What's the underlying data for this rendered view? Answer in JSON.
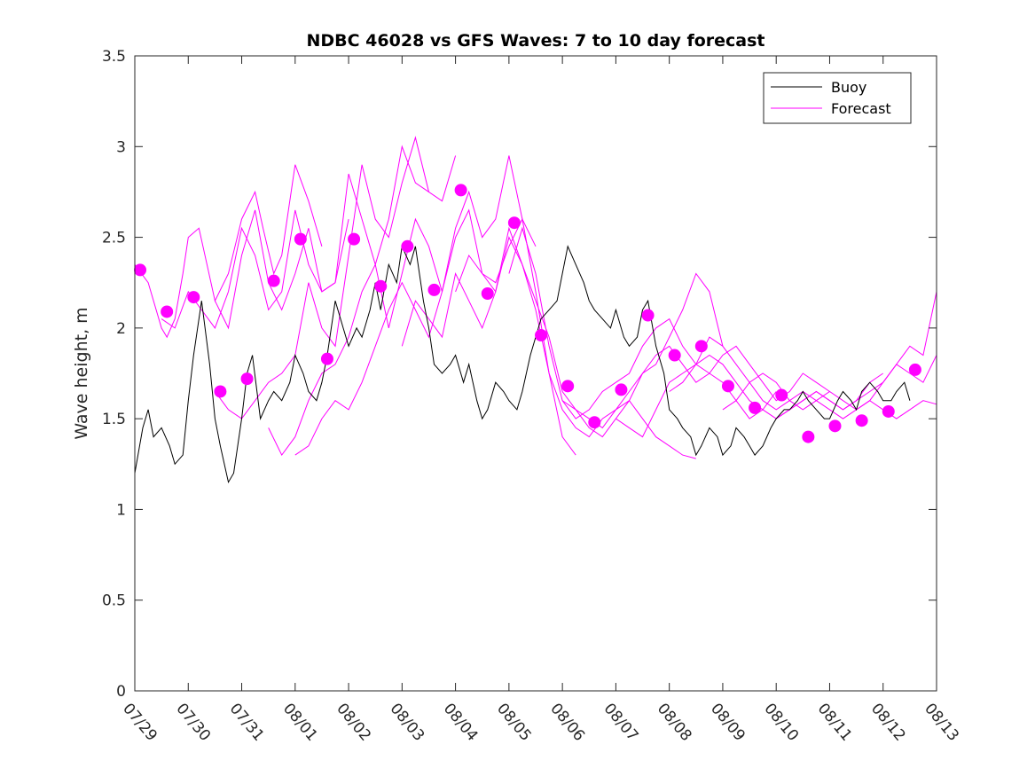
{
  "chart_data": {
    "type": "line",
    "title": "NDBC 46028 vs GFS Waves: 7 to 10 day forecast",
    "xlabel": "",
    "ylabel": "Wave height, m",
    "xlim": [
      "07/29",
      "08/13"
    ],
    "ylim": [
      0,
      3.5
    ],
    "x_tick_labels": [
      "07/29",
      "07/30",
      "07/31",
      "08/01",
      "08/02",
      "08/03",
      "08/04",
      "08/05",
      "08/06",
      "08/07",
      "08/08",
      "08/09",
      "08/10",
      "08/11",
      "08/12",
      "08/13"
    ],
    "y_ticks": [
      0,
      0.5,
      1,
      1.5,
      2,
      2.5,
      3,
      3.5
    ],
    "y_tick_labels": [
      "0",
      "0.5",
      "1",
      "1.5",
      "2",
      "2.5",
      "3",
      "3.5"
    ],
    "grid": false,
    "legend_position": "top-right",
    "series": [
      {
        "name": "Buoy",
        "color": "#000000",
        "x": [
          0.0,
          0.15,
          0.25,
          0.35,
          0.5,
          0.65,
          0.75,
          0.9,
          1.0,
          1.1,
          1.25,
          1.4,
          1.5,
          1.6,
          1.75,
          1.85,
          2.0,
          2.1,
          2.2,
          2.35,
          2.5,
          2.6,
          2.75,
          2.9,
          3.0,
          3.15,
          3.25,
          3.4,
          3.5,
          3.6,
          3.75,
          3.9,
          4.0,
          4.15,
          4.25,
          4.4,
          4.5,
          4.6,
          4.75,
          4.9,
          5.0,
          5.15,
          5.25,
          5.4,
          5.5,
          5.6,
          5.75,
          5.9,
          6.0,
          6.15,
          6.25,
          6.4,
          6.5,
          6.6,
          6.75,
          6.9,
          7.0,
          7.15,
          7.25,
          7.4,
          7.5,
          7.6,
          7.75,
          7.9,
          8.0,
          8.1,
          8.25,
          8.4,
          8.5,
          8.6,
          8.75,
          8.9,
          9.0,
          9.15,
          9.25,
          9.4,
          9.5,
          9.6,
          9.75,
          9.9,
          10.0,
          10.15,
          10.25,
          10.4,
          10.5,
          10.6,
          10.75,
          10.9,
          11.0,
          11.15,
          11.25,
          11.4,
          11.5,
          11.6,
          11.75,
          11.9,
          12.0,
          12.15,
          12.25,
          12.4,
          12.5,
          12.6,
          12.75,
          12.9,
          13.0,
          13.15,
          13.25,
          13.4,
          13.5,
          13.6,
          13.75,
          13.9,
          14.0,
          14.15,
          14.25,
          14.4,
          14.5
        ],
        "y": [
          1.2,
          1.45,
          1.55,
          1.4,
          1.45,
          1.35,
          1.25,
          1.3,
          1.6,
          1.85,
          2.15,
          1.8,
          1.5,
          1.35,
          1.15,
          1.2,
          1.5,
          1.75,
          1.85,
          1.5,
          1.6,
          1.65,
          1.6,
          1.7,
          1.85,
          1.75,
          1.65,
          1.6,
          1.7,
          1.85,
          2.15,
          2.0,
          1.9,
          2.0,
          1.95,
          2.1,
          2.25,
          2.1,
          2.35,
          2.25,
          2.45,
          2.35,
          2.45,
          2.15,
          2.0,
          1.8,
          1.75,
          1.8,
          1.85,
          1.7,
          1.8,
          1.6,
          1.5,
          1.55,
          1.7,
          1.65,
          1.6,
          1.55,
          1.65,
          1.85,
          1.95,
          2.05,
          2.1,
          2.15,
          2.3,
          2.45,
          2.35,
          2.25,
          2.15,
          2.1,
          2.05,
          2.0,
          2.1,
          1.95,
          1.9,
          1.95,
          2.1,
          2.15,
          1.9,
          1.75,
          1.55,
          1.5,
          1.45,
          1.4,
          1.3,
          1.35,
          1.45,
          1.4,
          1.3,
          1.35,
          1.45,
          1.4,
          1.35,
          1.3,
          1.35,
          1.45,
          1.5,
          1.55,
          1.55,
          1.6,
          1.65,
          1.6,
          1.55,
          1.5,
          1.5,
          1.6,
          1.65,
          1.6,
          1.55,
          1.65,
          1.7,
          1.65,
          1.6,
          1.6,
          1.65,
          1.7,
          1.6
        ]
      },
      {
        "name": "Forecast",
        "color": "#ff00ff",
        "lines": [
          {
            "x": [
              0.0,
              0.25,
              0.5,
              0.6,
              0.75,
              0.9,
              1.0,
              1.2,
              1.35,
              1.5,
              1.75,
              2.0,
              2.25,
              2.4,
              2.6,
              2.75,
              3.0,
              3.25,
              3.5
            ],
            "y": [
              2.35,
              2.25,
              2.0,
              1.95,
              2.05,
              2.3,
              2.5,
              2.55,
              2.35,
              2.15,
              2.3,
              2.6,
              2.75,
              2.55,
              2.3,
              2.4,
              2.9,
              2.7,
              2.45
            ]
          },
          {
            "x": [
              0.5,
              0.75,
              1.0,
              1.25,
              1.5,
              1.75,
              2.0,
              2.25,
              2.5,
              2.75,
              3.0,
              3.25,
              3.5,
              3.75,
              4.0
            ],
            "y": [
              2.05,
              2.0,
              2.2,
              2.1,
              2.0,
              2.2,
              2.55,
              2.4,
              2.1,
              2.2,
              2.65,
              2.35,
              2.2,
              2.25,
              2.6
            ]
          },
          {
            "x": [
              1.5,
              1.75,
              2.0,
              2.25,
              2.5,
              2.75,
              3.0,
              3.25,
              3.5,
              3.75,
              4.0,
              4.25,
              4.5,
              4.75,
              5.0,
              5.25,
              5.5
            ],
            "y": [
              2.15,
              2.0,
              2.4,
              2.65,
              2.25,
              2.1,
              2.3,
              2.55,
              2.2,
              2.25,
              2.85,
              2.6,
              2.35,
              2.6,
              3.0,
              2.8,
              2.75
            ]
          },
          {
            "x": [
              1.5,
              1.75,
              2.0,
              2.25,
              2.5,
              2.75,
              3.0,
              3.25,
              3.5,
              3.75,
              4.0,
              4.25,
              4.5,
              4.75,
              5.0,
              5.25,
              5.5,
              5.75,
              6.0
            ],
            "y": [
              1.65,
              1.55,
              1.5,
              1.6,
              1.7,
              1.75,
              1.85,
              2.25,
              2.0,
              1.9,
              2.4,
              2.9,
              2.6,
              2.5,
              2.8,
              3.05,
              2.75,
              2.7,
              2.95
            ]
          },
          {
            "x": [
              2.5,
              2.75,
              3.0,
              3.25,
              3.5,
              3.75,
              4.0,
              4.25,
              4.5,
              4.75,
              5.0,
              5.25,
              5.5,
              5.75,
              6.0,
              6.25,
              6.5,
              6.75,
              7.0,
              7.25,
              7.5
            ],
            "y": [
              1.45,
              1.3,
              1.4,
              1.6,
              1.75,
              1.8,
              1.95,
              2.2,
              2.35,
              2.0,
              2.3,
              2.6,
              2.45,
              2.2,
              2.55,
              2.75,
              2.5,
              2.6,
              2.95,
              2.6,
              2.45
            ]
          },
          {
            "x": [
              3.0,
              3.25,
              3.5,
              3.75,
              4.0,
              4.25,
              4.5,
              4.75,
              5.0,
              5.25,
              5.5,
              5.75,
              6.0,
              6.25,
              6.5,
              6.75,
              7.0,
              7.25,
              7.5,
              7.75,
              8.0,
              8.25
            ],
            "y": [
              1.3,
              1.35,
              1.5,
              1.6,
              1.55,
              1.7,
              1.9,
              2.1,
              2.25,
              2.1,
              1.95,
              2.2,
              2.5,
              2.65,
              2.3,
              2.25,
              2.45,
              2.6,
              2.2,
              1.75,
              1.4,
              1.3
            ]
          },
          {
            "x": [
              5.0,
              5.25,
              5.5,
              5.75,
              6.0,
              6.25,
              6.5,
              6.75,
              7.0,
              7.25,
              7.5,
              7.75,
              8.0,
              8.25,
              8.5,
              8.75,
              9.0,
              9.25,
              9.5,
              9.75,
              10.0,
              10.25,
              10.5
            ],
            "y": [
              1.9,
              2.15,
              2.05,
              1.95,
              2.3,
              2.15,
              2.0,
              2.2,
              2.55,
              2.35,
              2.1,
              1.75,
              1.55,
              1.45,
              1.4,
              1.5,
              1.55,
              1.6,
              1.5,
              1.4,
              1.35,
              1.3,
              1.28
            ]
          },
          {
            "x": [
              6.0,
              6.25,
              6.5,
              6.75,
              7.0,
              7.25,
              7.5,
              7.75,
              8.0,
              8.25,
              8.5,
              8.75,
              9.0,
              9.25,
              9.5,
              9.75,
              10.0,
              10.25,
              10.5,
              10.75,
              11.0
            ],
            "y": [
              2.2,
              2.4,
              2.3,
              2.2,
              2.5,
              2.35,
              2.15,
              1.95,
              1.65,
              1.55,
              1.5,
              1.45,
              1.55,
              1.65,
              1.75,
              1.8,
              1.95,
              2.1,
              2.3,
              2.2,
              1.9
            ]
          },
          {
            "x": [
              7.0,
              7.25,
              7.5,
              7.75,
              8.0,
              8.25,
              8.5,
              8.75,
              9.0,
              9.25,
              9.5,
              9.75,
              10.0,
              10.25,
              10.5,
              10.75,
              11.0,
              11.25,
              11.5,
              11.75,
              12.0
            ],
            "y": [
              2.3,
              2.55,
              2.3,
              1.9,
              1.6,
              1.5,
              1.55,
              1.65,
              1.7,
              1.75,
              1.9,
              2.0,
              2.05,
              1.9,
              1.8,
              1.75,
              1.7,
              1.6,
              1.5,
              1.55,
              1.65
            ]
          },
          {
            "x": [
              8.0,
              8.25,
              8.5,
              8.75,
              9.0,
              9.25,
              9.5,
              9.75,
              10.0,
              10.25,
              10.5,
              10.75,
              11.0,
              11.25,
              11.5,
              11.75,
              12.0,
              12.25,
              12.5,
              12.75,
              13.0
            ],
            "y": [
              1.6,
              1.55,
              1.45,
              1.4,
              1.5,
              1.6,
              1.75,
              1.85,
              1.9,
              1.8,
              1.7,
              1.75,
              1.85,
              1.9,
              1.8,
              1.7,
              1.6,
              1.65,
              1.75,
              1.7,
              1.65
            ]
          },
          {
            "x": [
              9.0,
              9.25,
              9.5,
              9.75,
              10.0,
              10.25,
              10.5,
              10.75,
              11.0,
              11.25,
              11.5,
              11.75,
              12.0,
              12.25,
              12.5,
              12.75,
              13.0,
              13.25,
              13.5,
              13.75,
              14.0
            ],
            "y": [
              1.5,
              1.45,
              1.4,
              1.55,
              1.7,
              1.75,
              1.8,
              1.85,
              1.8,
              1.7,
              1.6,
              1.55,
              1.5,
              1.55,
              1.6,
              1.65,
              1.6,
              1.55,
              1.6,
              1.7,
              1.75
            ]
          },
          {
            "x": [
              10.0,
              10.25,
              10.5,
              10.75,
              11.0,
              11.25,
              11.5,
              11.75,
              12.0,
              12.25,
              12.5,
              12.75,
              13.0,
              13.25,
              13.5,
              13.75,
              14.0,
              14.25,
              14.5,
              14.75,
              15.0
            ],
            "y": [
              1.65,
              1.7,
              1.8,
              1.95,
              1.9,
              1.8,
              1.7,
              1.6,
              1.55,
              1.6,
              1.65,
              1.6,
              1.55,
              1.5,
              1.55,
              1.6,
              1.55,
              1.5,
              1.55,
              1.6,
              1.58
            ]
          },
          {
            "x": [
              11.0,
              11.25,
              11.5,
              11.75,
              12.0,
              12.25,
              12.5,
              12.75,
              13.0,
              13.25,
              13.5,
              13.75,
              14.0,
              14.25,
              14.5,
              14.75,
              15.0
            ],
            "y": [
              1.55,
              1.6,
              1.7,
              1.75,
              1.7,
              1.6,
              1.55,
              1.6,
              1.65,
              1.6,
              1.55,
              1.6,
              1.7,
              1.8,
              1.9,
              1.85,
              2.2
            ]
          },
          {
            "x": [
              12.0,
              12.25,
              12.5,
              12.75,
              13.0,
              13.25,
              13.5,
              13.75,
              14.0,
              14.25,
              14.5,
              14.75,
              15.0
            ],
            "y": [
              1.5,
              1.55,
              1.6,
              1.65,
              1.6,
              1.55,
              1.6,
              1.65,
              1.7,
              1.8,
              1.75,
              1.7,
              1.85
            ]
          }
        ],
        "markers": {
          "x": [
            0.1,
            0.6,
            1.1,
            1.6,
            2.1,
            2.6,
            3.1,
            3.6,
            4.1,
            4.6,
            5.1,
            5.6,
            6.1,
            6.6,
            7.1,
            7.6,
            8.1,
            8.6,
            9.1,
            9.6,
            10.1,
            10.6,
            11.1,
            11.6,
            12.1,
            12.6,
            13.1,
            13.6,
            14.1,
            14.6
          ],
          "y": [
            2.32,
            2.09,
            2.17,
            1.65,
            1.72,
            2.26,
            2.49,
            1.83,
            2.49,
            2.23,
            2.45,
            2.21,
            2.76,
            2.19,
            2.58,
            1.96,
            1.68,
            1.48,
            1.66,
            2.07,
            1.85,
            1.9,
            1.68,
            1.56,
            1.63,
            1.4,
            1.46,
            1.49,
            1.54,
            1.77
          ]
        }
      }
    ]
  }
}
